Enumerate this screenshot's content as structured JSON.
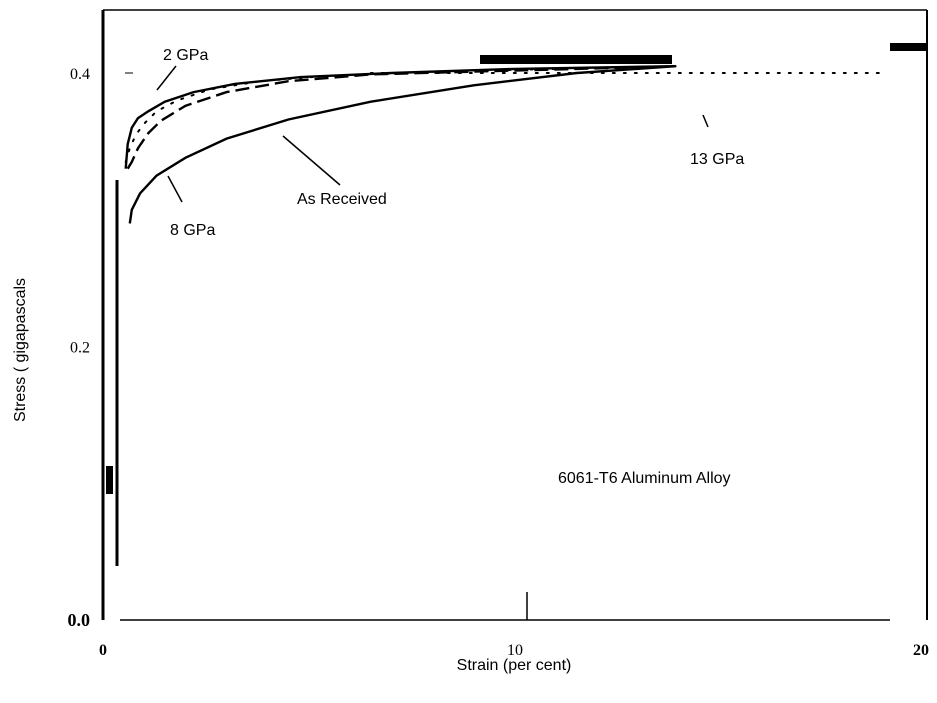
{
  "chart_data": {
    "type": "line",
    "title": "",
    "xlabel": "Strain (per cent)",
    "ylabel": "Stress ( gigapascals",
    "xlim": [
      0,
      20
    ],
    "ylim": [
      0,
      0.45
    ],
    "x_ticks": [
      "0",
      "10",
      "20"
    ],
    "y_ticks": [
      "0.0",
      "0.2",
      "0.4"
    ],
    "y_tick_values": [
      0,
      0.2,
      0.4
    ],
    "x_tick_values": [
      0,
      10,
      20
    ],
    "grid": false,
    "legend": "none",
    "annotation": "6061-T6 Aluminum Alloy",
    "series": [
      {
        "label": "As Received",
        "style": "solid",
        "x": [
          0.65,
          0.7,
          0.9,
          1.3,
          2.0,
          3.0,
          4.5,
          6.5,
          9.0,
          11.5,
          13.9
        ],
        "y": [
          0.29,
          0.3,
          0.312,
          0.325,
          0.338,
          0.352,
          0.366,
          0.379,
          0.391,
          0.4,
          0.405
        ]
      },
      {
        "label": "8 GPa",
        "style": "dashed",
        "x": [
          0.6,
          0.7,
          0.85,
          1.1,
          1.4,
          2.0,
          3.0,
          4.5,
          6.5,
          9.0,
          11.5,
          13.9
        ],
        "y": [
          0.33,
          0.335,
          0.345,
          0.356,
          0.365,
          0.376,
          0.386,
          0.394,
          0.399,
          0.401,
          0.403,
          0.405
        ]
      },
      {
        "label": "13 GPa",
        "style": "dotted",
        "x": [
          0.55,
          0.65,
          0.8,
          1.0,
          1.3,
          1.8,
          2.6,
          3.8,
          5.5,
          8.0,
          11.0,
          13.9
        ],
        "y": [
          0.335,
          0.345,
          0.355,
          0.363,
          0.372,
          0.38,
          0.388,
          0.394,
          0.398,
          0.401,
          0.403,
          0.405
        ]
      },
      {
        "label": "2 GPa",
        "style": "solid",
        "x": [
          0.55,
          0.6,
          0.7,
          0.85,
          1.1,
          1.5,
          2.2,
          3.2,
          4.8,
          7.0,
          10.0,
          13.9
        ],
        "y": [
          0.33,
          0.348,
          0.36,
          0.367,
          0.372,
          0.379,
          0.386,
          0.392,
          0.397,
          0.4,
          0.403,
          0.405
        ]
      },
      {
        "label": "",
        "style": "dotted",
        "x": [
          6.5,
          19.0
        ],
        "y": [
          0.4,
          0.4
        ]
      }
    ],
    "labels": [
      {
        "text": "2 GPa"
      },
      {
        "text": "8 GPa"
      },
      {
        "text": "As Received"
      },
      {
        "text": "13 GPa"
      }
    ]
  }
}
